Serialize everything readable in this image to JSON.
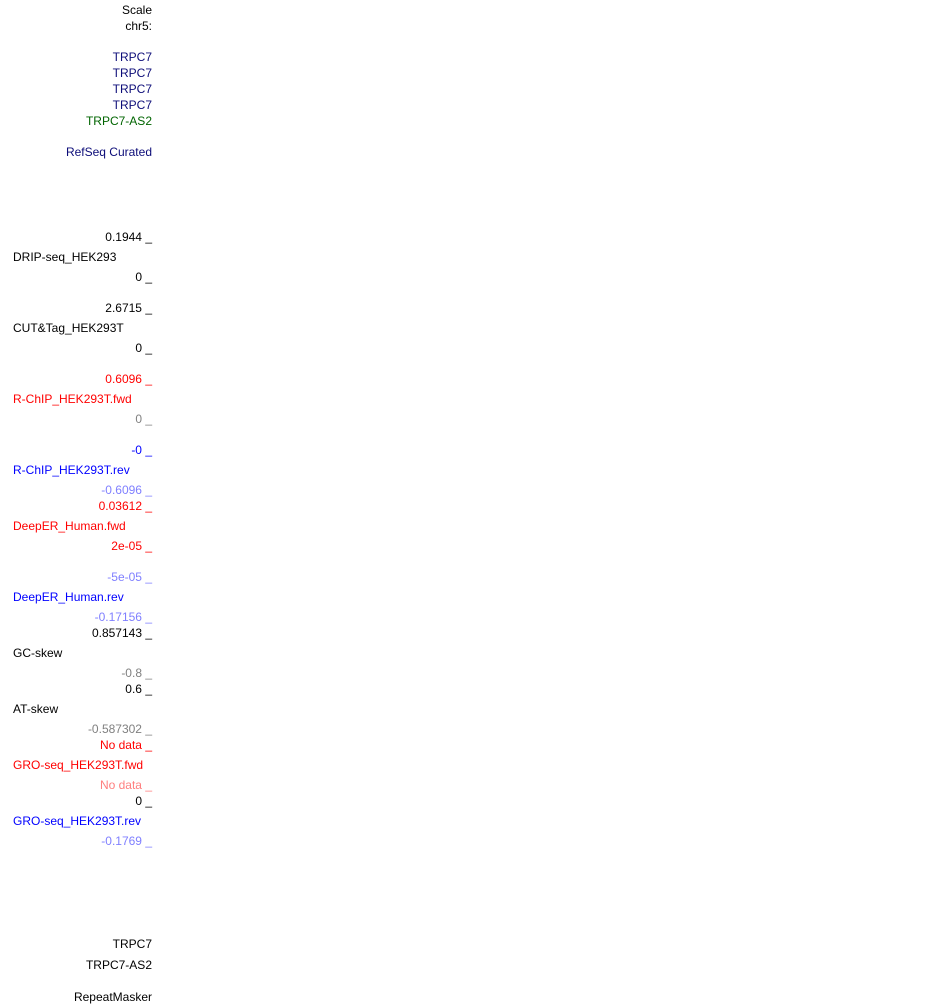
{
  "colors": {
    "navy": "#0c0c78",
    "green": "#006400",
    "red": "#ff0000",
    "blue": "#0000ff",
    "light_blue": "#7f7fff",
    "gray": "#808080",
    "light_red": "#ff7f7f"
  },
  "header": {
    "scale": "Scale",
    "chrom": "chr5:"
  },
  "genes": [
    "TRPC7",
    "TRPC7",
    "TRPC7",
    "TRPC7",
    "TRPC7-AS2"
  ],
  "refseq": "RefSeq Curated",
  "tracks": {
    "drip": {
      "max": "0.1944 _",
      "name": "DRIP-seq_HEK293",
      "min": "0 _"
    },
    "cuttag": {
      "max": "2.6715 _",
      "name": "CUT&Tag_HEK293T",
      "min": "0 _"
    },
    "rchip_fwd": {
      "max": "0.6096 _",
      "name": "R-ChIP_HEK293T.fwd",
      "min": "0 _"
    },
    "rchip_rev": {
      "max": "-0 _",
      "name": "R-ChIP_HEK293T.rev",
      "min": "-0.6096 _"
    },
    "deeper_fwd": {
      "max": "0.03612 _",
      "name": "DeepER_Human.fwd",
      "min": "2e-05 _"
    },
    "deeper_rev": {
      "max": "-5e-05 _",
      "name": "DeepER_Human.rev",
      "min": "-0.17156 _"
    },
    "gc": {
      "max": "0.857143 _",
      "name": "GC-skew",
      "min": "-0.8 _"
    },
    "at": {
      "max": "0.6 _",
      "name": "AT-skew",
      "min": "-0.587302 _"
    },
    "gro_fwd": {
      "max": "No data _",
      "name": "GRO-seq_HEK293T.fwd",
      "min": "No data _"
    },
    "gro_rev": {
      "max": "0 _",
      "name": "GRO-seq_HEK293T.rev",
      "min": "-0.1769 _"
    }
  },
  "bottom": {
    "gene1": "TRPC7",
    "gene2": "TRPC7-AS2",
    "repeatmasker": "RepeatMasker"
  }
}
